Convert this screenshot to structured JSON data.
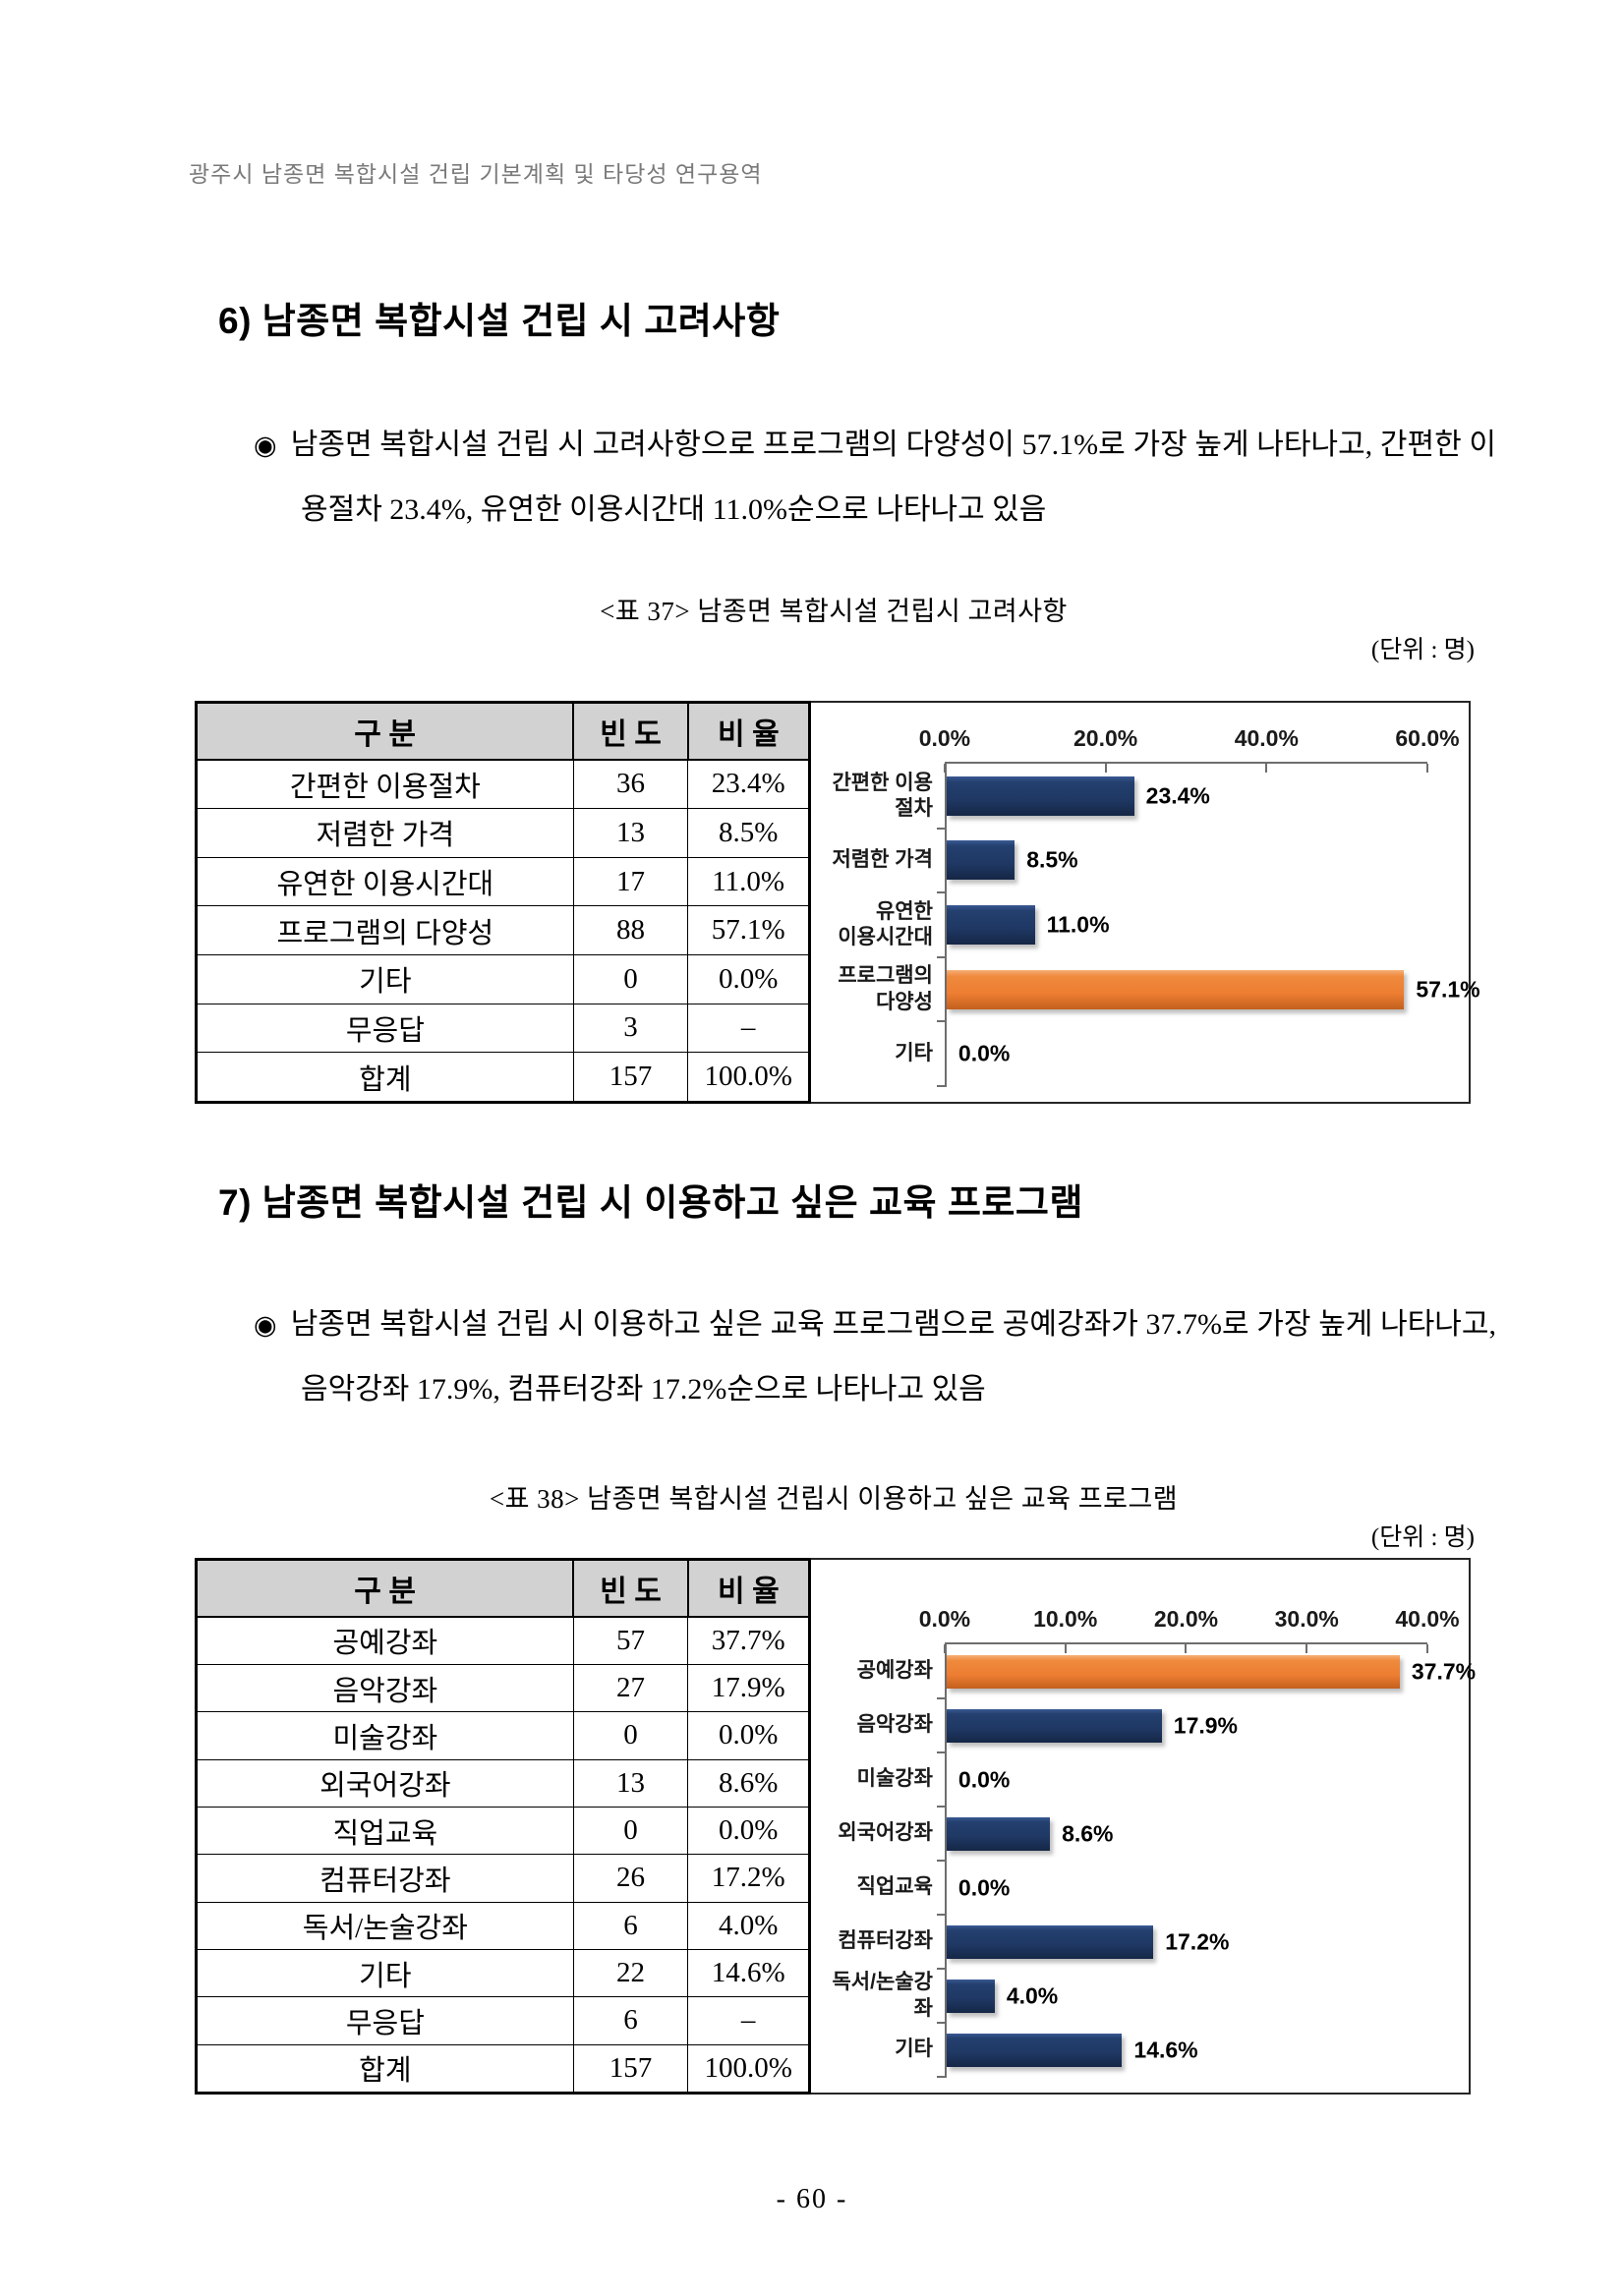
{
  "page": {
    "running_header": "광주시 남종면 복합시설 건립 기본계획 및 타당성 연구용역",
    "page_number": "- 60 -"
  },
  "colors": {
    "bar_navy": "#1f3864",
    "bar_highlight_orange": "#ed7d31",
    "table_header_bg": "#d2d2d2",
    "running_header_gray": "#7a7a7a",
    "axis_gray": "#6e6e6e"
  },
  "section6": {
    "heading": "6) 남종면 복합시설 건립 시 고려사항",
    "bullet_marker": "◉",
    "bullet_text": "남종면 복합시설 건립 시 고려사항으로 프로그램의 다양성이 57.1%로 가장 높게 나타나고, 간편한 이용절차 23.4%, 유연한 이용시간대 11.0%순으로 나타나고 있음",
    "table_caption": "<표 37> 남종면 복합시설 건립시 고려사항",
    "unit_label": "(단위 : 명)",
    "table": {
      "columns": [
        "구 분",
        "빈 도",
        "비 율"
      ],
      "rows": [
        [
          "간편한 이용절차",
          "36",
          "23.4%"
        ],
        [
          "저렴한 가격",
          "13",
          "8.5%"
        ],
        [
          "유연한 이용시간대",
          "17",
          "11.0%"
        ],
        [
          "프로그램의 다양성",
          "88",
          "57.1%"
        ],
        [
          "기타",
          "0",
          "0.0%"
        ],
        [
          "무응답",
          "3",
          "–"
        ],
        [
          "합계",
          "157",
          "100.0%"
        ]
      ]
    }
  },
  "section7": {
    "heading": "7) 남종면 복합시설 건립 시 이용하고 싶은 교육 프로그램",
    "bullet_marker": "◉",
    "bullet_text": "남종면 복합시설 건립 시 이용하고 싶은 교육 프로그램으로 공예강좌가 37.7%로 가장 높게 나타나고, 음악강좌 17.9%, 컴퓨터강좌 17.2%순으로 나타나고 있음",
    "table_caption": "<표 38> 남종면 복합시설 건립시 이용하고 싶은 교육 프로그램",
    "unit_label": "(단위 : 명)",
    "table": {
      "columns": [
        "구 분",
        "빈 도",
        "비 율"
      ],
      "rows": [
        [
          "공예강좌",
          "57",
          "37.7%"
        ],
        [
          "음악강좌",
          "27",
          "17.9%"
        ],
        [
          "미술강좌",
          "0",
          "0.0%"
        ],
        [
          "외국어강좌",
          "13",
          "8.6%"
        ],
        [
          "직업교육",
          "0",
          "0.0%"
        ],
        [
          "컴퓨터강좌",
          "26",
          "17.2%"
        ],
        [
          "독서/논술강좌",
          "6",
          "4.0%"
        ],
        [
          "기타",
          "22",
          "14.6%"
        ],
        [
          "무응답",
          "6",
          "–"
        ],
        [
          "합계",
          "157",
          "100.0%"
        ]
      ]
    }
  },
  "chart_data": [
    {
      "type": "bar",
      "orientation": "horizontal",
      "title": "남종면 복합시설 건립시 고려사항",
      "categories": [
        "간편한 이용절차",
        "저렴한 가격",
        "유연한\n이용시간대",
        "프로그램의\n다양성",
        "기타"
      ],
      "values": [
        23.4,
        8.5,
        11.0,
        57.1,
        0.0
      ],
      "value_labels": [
        "23.4%",
        "8.5%",
        "11.0%",
        "57.1%",
        "0.0%"
      ],
      "highlight_index": 3,
      "xlim": [
        0,
        60
      ],
      "tick_values": [
        0,
        20,
        40,
        60
      ],
      "tick_labels": [
        "0.0%",
        "20.0%",
        "40.0%",
        "60.0%"
      ],
      "axis_position": "top",
      "grid": false,
      "legend": false
    },
    {
      "type": "bar",
      "orientation": "horizontal",
      "title": "남종면 복합시설 건립시 이용하고 싶은 교육 프로그램",
      "categories": [
        "공예강좌",
        "음악강좌",
        "미술강좌",
        "외국어강좌",
        "직업교육",
        "컴퓨터강좌",
        "독서/논술강좌",
        "기타"
      ],
      "values": [
        37.7,
        17.9,
        0.0,
        8.6,
        0.0,
        17.2,
        4.0,
        14.6
      ],
      "value_labels": [
        "37.7%",
        "17.9%",
        "0.0%",
        "8.6%",
        "0.0%",
        "17.2%",
        "4.0%",
        "14.6%"
      ],
      "highlight_index": 0,
      "xlim": [
        0,
        40
      ],
      "tick_values": [
        0,
        10,
        20,
        30,
        40
      ],
      "tick_labels": [
        "0.0%",
        "10.0%",
        "20.0%",
        "30.0%",
        "40.0%"
      ],
      "axis_position": "top",
      "grid": false,
      "legend": false
    }
  ]
}
